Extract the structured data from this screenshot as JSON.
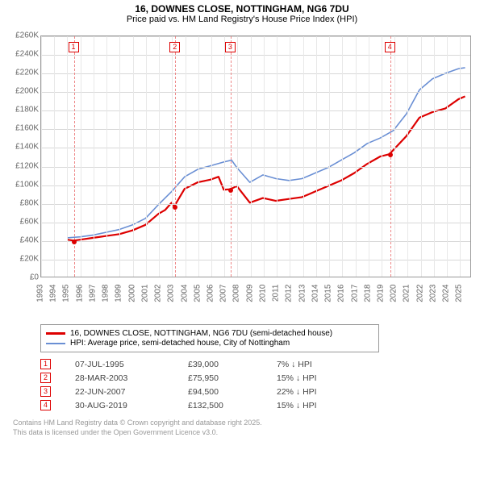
{
  "title": "16, DOWNES CLOSE, NOTTINGHAM, NG6 7DU",
  "subtitle": "Price paid vs. HM Land Registry's House Price Index (HPI)",
  "chart": {
    "type": "line",
    "background_color": "#ffffff",
    "grid_color_h": "#d8d8d8",
    "grid_color_v": "#e8e8e8",
    "marker_line_color": "#e88888",
    "border_color": "#999999",
    "xlim": [
      1993,
      2025.9
    ],
    "ylim": [
      0,
      260000
    ],
    "ytick_step": 20000,
    "yticks": [
      "£0",
      "£20K",
      "£40K",
      "£60K",
      "£80K",
      "£100K",
      "£120K",
      "£140K",
      "£160K",
      "£180K",
      "£200K",
      "£220K",
      "£240K",
      "£260K"
    ],
    "xticks": [
      1993,
      1994,
      1995,
      1996,
      1997,
      1998,
      1999,
      2000,
      2001,
      2002,
      2003,
      2004,
      2005,
      2006,
      2007,
      2008,
      2009,
      2010,
      2011,
      2012,
      2013,
      2014,
      2015,
      2016,
      2017,
      2018,
      2019,
      2020,
      2021,
      2022,
      2023,
      2024,
      2025
    ],
    "series": [
      {
        "name": "price_paid",
        "color": "#dd0000",
        "width": 2.2,
        "points": [
          [
            1995.0,
            40000
          ],
          [
            1995.5,
            39000
          ],
          [
            1996,
            40000
          ],
          [
            1997,
            42000
          ],
          [
            1998,
            44000
          ],
          [
            1999,
            46000
          ],
          [
            2000,
            50000
          ],
          [
            2001,
            56000
          ],
          [
            2002,
            68000
          ],
          [
            2002.5,
            72000
          ],
          [
            2003,
            80000
          ],
          [
            2003.2,
            75950
          ],
          [
            2004,
            95000
          ],
          [
            2005,
            102000
          ],
          [
            2006,
            105000
          ],
          [
            2006.6,
            108000
          ],
          [
            2007,
            94000
          ],
          [
            2007.5,
            94500
          ],
          [
            2008,
            98000
          ],
          [
            2009,
            80000
          ],
          [
            2010,
            85000
          ],
          [
            2011,
            82000
          ],
          [
            2012,
            84000
          ],
          [
            2013,
            86000
          ],
          [
            2014,
            92000
          ],
          [
            2015,
            98000
          ],
          [
            2016,
            104000
          ],
          [
            2017,
            112000
          ],
          [
            2018,
            122000
          ],
          [
            2019,
            130000
          ],
          [
            2019.7,
            132500
          ],
          [
            2020,
            137000
          ],
          [
            2021,
            152000
          ],
          [
            2022,
            172000
          ],
          [
            2023,
            178000
          ],
          [
            2024,
            182000
          ],
          [
            2025,
            192000
          ],
          [
            2025.5,
            195000
          ]
        ]
      },
      {
        "name": "hpi",
        "color": "#6a8fd4",
        "width": 1.6,
        "points": [
          [
            1995.0,
            42000
          ],
          [
            1996,
            43000
          ],
          [
            1997,
            45000
          ],
          [
            1998,
            48000
          ],
          [
            1999,
            51000
          ],
          [
            2000,
            56000
          ],
          [
            2001,
            63000
          ],
          [
            2002,
            78000
          ],
          [
            2003,
            92000
          ],
          [
            2004,
            108000
          ],
          [
            2005,
            116000
          ],
          [
            2006,
            120000
          ],
          [
            2007,
            124000
          ],
          [
            2007.6,
            126000
          ],
          [
            2008,
            118000
          ],
          [
            2009,
            102000
          ],
          [
            2010,
            110000
          ],
          [
            2011,
            106000
          ],
          [
            2012,
            104000
          ],
          [
            2013,
            106000
          ],
          [
            2014,
            112000
          ],
          [
            2015,
            118000
          ],
          [
            2016,
            126000
          ],
          [
            2017,
            134000
          ],
          [
            2018,
            144000
          ],
          [
            2019,
            150000
          ],
          [
            2020,
            158000
          ],
          [
            2021,
            176000
          ],
          [
            2022,
            202000
          ],
          [
            2023,
            214000
          ],
          [
            2024,
            220000
          ],
          [
            2025,
            225000
          ],
          [
            2025.5,
            226000
          ]
        ]
      }
    ],
    "markers": [
      {
        "n": "1",
        "x": 1995.5,
        "price": 39000
      },
      {
        "n": "2",
        "x": 2003.24,
        "price": 75950
      },
      {
        "n": "3",
        "x": 2007.47,
        "price": 94500
      },
      {
        "n": "4",
        "x": 2019.66,
        "price": 132500
      }
    ]
  },
  "legend": {
    "items": [
      {
        "color": "#dd0000",
        "width": 3,
        "label": "16, DOWNES CLOSE, NOTTINGHAM, NG6 7DU (semi-detached house)"
      },
      {
        "color": "#6a8fd4",
        "width": 2,
        "label": "HPI: Average price, semi-detached house, City of Nottingham"
      }
    ]
  },
  "transactions": [
    {
      "n": "1",
      "date": "07-JUL-1995",
      "price": "£39,000",
      "diff": "7% ↓ HPI"
    },
    {
      "n": "2",
      "date": "28-MAR-2003",
      "price": "£75,950",
      "diff": "15% ↓ HPI"
    },
    {
      "n": "3",
      "date": "22-JUN-2007",
      "price": "£94,500",
      "diff": "22% ↓ HPI"
    },
    {
      "n": "4",
      "date": "30-AUG-2019",
      "price": "£132,500",
      "diff": "15% ↓ HPI"
    }
  ],
  "footer_line1": "Contains HM Land Registry data © Crown copyright and database right 2025.",
  "footer_line2": "This data is licensed under the Open Government Licence v3.0."
}
